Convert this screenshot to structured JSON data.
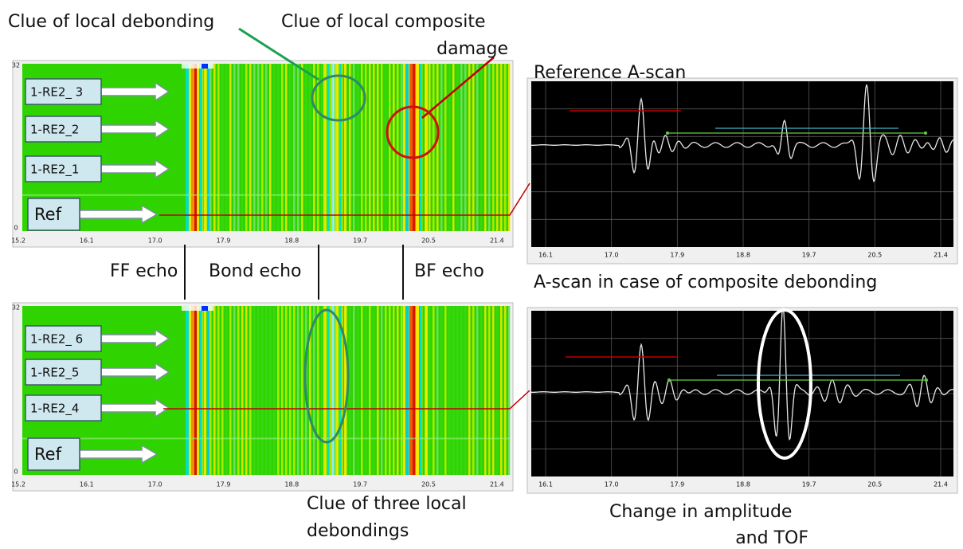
{
  "annotations": {
    "local_debonding": "Clue of local debonding",
    "composite_damage": [
      "Clue of local composite",
      "damage"
    ],
    "reference_ascan": "Reference A-scan",
    "ff_echo": "FF echo",
    "bond_echo": "Bond echo",
    "bf_echo": "BF echo",
    "debonding_ascan": "A-scan in case of composite debonding",
    "three_debondings": [
      "Clue of three local",
      "debondings"
    ],
    "amplitude_tof": [
      "Change in amplitude",
      "and TOF"
    ]
  },
  "top_bscan": {
    "labels": [
      "1-RE2_ 3",
      "1-RE2_2",
      "1-RE2_1",
      "Ref"
    ],
    "y_top": "32",
    "y_bottom": "0",
    "x_ticks": [
      "15.2",
      "16.1",
      "17.0",
      "17.9",
      "18.8",
      "19.7",
      "20.5",
      "21.4"
    ]
  },
  "bottom_bscan": {
    "labels": [
      "1-RE2_ 6",
      "1-RE2_5",
      "1-RE2_4",
      "Ref"
    ],
    "y_top": "32",
    "y_bottom": "0",
    "x_ticks": [
      "15.2",
      "16.1",
      "17.0",
      "17.9",
      "18.8",
      "19.7",
      "20.5",
      "21.4"
    ]
  },
  "top_ascan": {
    "x_ticks": [
      "16.1",
      "17.0",
      "17.9",
      "18.8",
      "19.7",
      "20.5",
      "21.4"
    ]
  },
  "bottom_ascan": {
    "x_ticks": [
      "16.1",
      "17.0",
      "17.9",
      "18.8",
      "19.7",
      "20.5",
      "21.4"
    ]
  }
}
